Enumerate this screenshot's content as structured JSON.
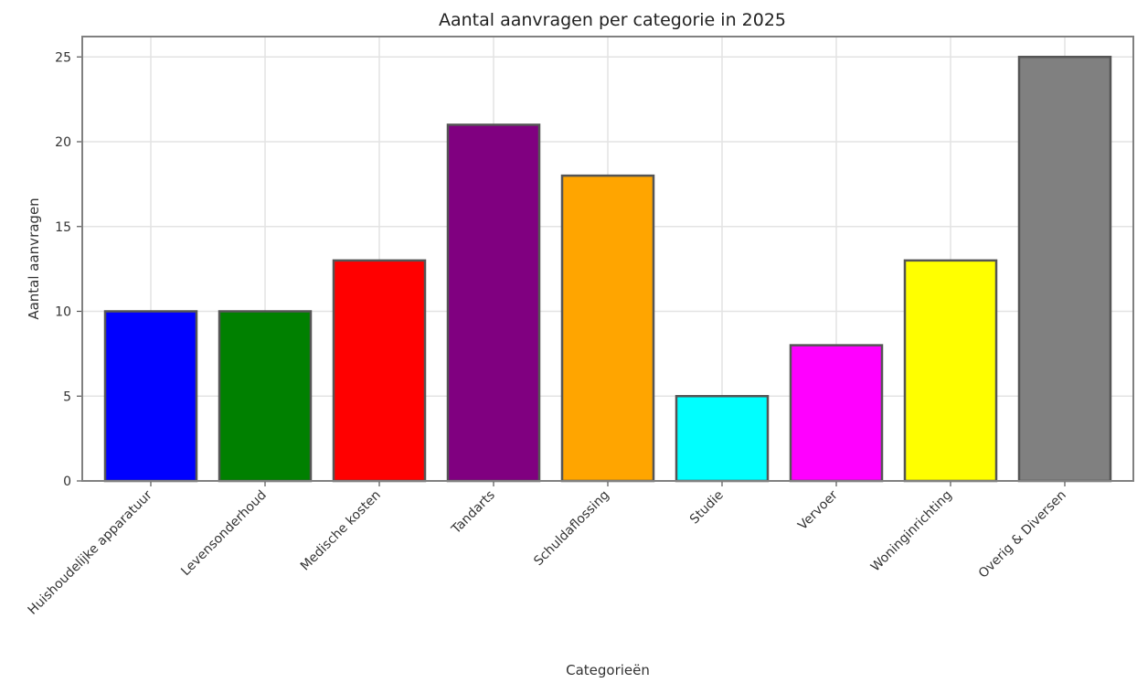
{
  "chart_data": {
    "type": "bar",
    "title": "Aantal aanvragen per categorie in 2025",
    "xlabel": "Categorieën",
    "ylabel": "Aantal aanvragen",
    "categories": [
      "Huishoudelijke apparatuur",
      "Levensonderhoud",
      "Medische kosten",
      "Tandarts",
      "Schuldaflossing",
      "Studie",
      "Vervoer",
      "Woninginrichting",
      "Overig & Diversen"
    ],
    "values": [
      10,
      10,
      13,
      21,
      18,
      5,
      8,
      13,
      25
    ],
    "colors": [
      "#0000ff",
      "#008000",
      "#ff0000",
      "#800080",
      "#ffa500",
      "#00ffff",
      "#ff00ff",
      "#ffff00",
      "#808080"
    ],
    "ylim": [
      0,
      26.2
    ],
    "yticks": [
      0,
      5,
      10,
      15,
      20,
      25
    ],
    "grid": true,
    "legend": "none"
  }
}
